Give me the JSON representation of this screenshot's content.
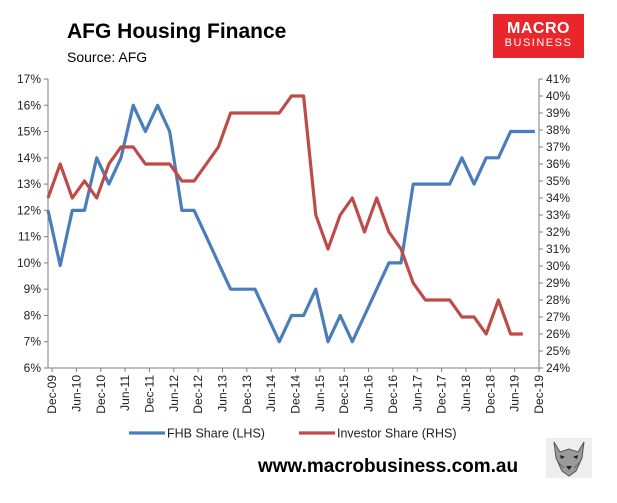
{
  "header": {
    "title": "AFG Housing Finance",
    "subtitle": "Source: AFG",
    "logo_line1": "MACRO",
    "logo_line2": "BUSINESS"
  },
  "footer": {
    "website": "www.macrobusiness.com.au"
  },
  "colors": {
    "fhb": "#4a7ebb",
    "investor": "#be4b48",
    "logo": "#e8262b",
    "grid": "#d9d9d9"
  },
  "chart_data": {
    "type": "line",
    "title": "AFG Housing Finance",
    "subtitle": "Source: AFG",
    "x_labels": [
      "Dec-09",
      "Jun-10",
      "Dec-10",
      "Jun-11",
      "Dec-11",
      "Jun-12",
      "Dec-12",
      "Jun-13",
      "Dec-13",
      "Jun-14",
      "Dec-14",
      "Jun-15",
      "Dec-15",
      "Jun-16",
      "Dec-16",
      "Jun-17",
      "Dec-17",
      "Jun-18",
      "Dec-18",
      "Jun-19",
      "Dec-19"
    ],
    "y_left": {
      "ticks": [
        "6%",
        "7%",
        "8%",
        "9%",
        "10%",
        "11%",
        "12%",
        "13%",
        "14%",
        "15%",
        "16%",
        "17%"
      ],
      "range": [
        6,
        17
      ]
    },
    "y_right": {
      "ticks": [
        "24%",
        "25%",
        "26%",
        "27%",
        "28%",
        "29%",
        "30%",
        "31%",
        "32%",
        "33%",
        "34%",
        "35%",
        "36%",
        "37%",
        "38%",
        "39%",
        "40%",
        "41%"
      ],
      "range": [
        24,
        41
      ]
    },
    "grid": false,
    "legend": "bottom",
    "series": [
      {
        "name": "FHB Share (LHS)",
        "axis": "left",
        "points": [
          [
            "Nov-09",
            12.0
          ],
          [
            "Feb-10",
            9.9
          ],
          [
            "May-10",
            12.0
          ],
          [
            "Aug-10",
            12.0
          ],
          [
            "Nov-10",
            14.0
          ],
          [
            "Feb-11",
            13.0
          ],
          [
            "May-11",
            14.0
          ],
          [
            "Aug-11",
            16.0
          ],
          [
            "Nov-11",
            15.0
          ],
          [
            "Feb-12",
            16.0
          ],
          [
            "May-12",
            15.0
          ],
          [
            "Aug-12",
            12.0
          ],
          [
            "Nov-12",
            12.0
          ],
          [
            "Feb-13",
            11.0
          ],
          [
            "May-13",
            10.0
          ],
          [
            "Aug-13",
            9.0
          ],
          [
            "Nov-13",
            9.0
          ],
          [
            "Feb-14",
            9.0
          ],
          [
            "May-14",
            8.0
          ],
          [
            "Aug-14",
            7.0
          ],
          [
            "Nov-14",
            8.0
          ],
          [
            "Feb-15",
            8.0
          ],
          [
            "May-15",
            9.0
          ],
          [
            "Aug-15",
            7.0
          ],
          [
            "Nov-15",
            8.0
          ],
          [
            "Feb-16",
            7.0
          ],
          [
            "May-16",
            8.0
          ],
          [
            "Aug-16",
            9.0
          ],
          [
            "Nov-16",
            10.0
          ],
          [
            "Feb-17",
            10.0
          ],
          [
            "May-17",
            13.0
          ],
          [
            "Aug-17",
            13.0
          ],
          [
            "Nov-17",
            13.0
          ],
          [
            "Feb-18",
            13.0
          ],
          [
            "May-18",
            14.0
          ],
          [
            "Aug-18",
            13.0
          ],
          [
            "Nov-18",
            14.0
          ],
          [
            "Feb-19",
            14.0
          ],
          [
            "May-19",
            15.0
          ],
          [
            "Aug-19",
            15.0
          ],
          [
            "Nov-19",
            15.0
          ]
        ]
      },
      {
        "name": "Investor Share (RHS)",
        "axis": "right",
        "points": [
          [
            "Nov-09",
            34.0
          ],
          [
            "Feb-10",
            36.0
          ],
          [
            "May-10",
            34.0
          ],
          [
            "Aug-10",
            35.0
          ],
          [
            "Nov-10",
            34.0
          ],
          [
            "Feb-11",
            36.0
          ],
          [
            "May-11",
            37.0
          ],
          [
            "Aug-11",
            37.0
          ],
          [
            "Nov-11",
            36.0
          ],
          [
            "Feb-12",
            36.0
          ],
          [
            "May-12",
            36.0
          ],
          [
            "Aug-12",
            35.0
          ],
          [
            "Nov-12",
            35.0
          ],
          [
            "Feb-13",
            36.0
          ],
          [
            "May-13",
            37.0
          ],
          [
            "Aug-13",
            39.0
          ],
          [
            "Nov-13",
            39.0
          ],
          [
            "Feb-14",
            39.0
          ],
          [
            "May-14",
            39.0
          ],
          [
            "Aug-14",
            39.0
          ],
          [
            "Nov-14",
            40.0
          ],
          [
            "Feb-15",
            40.0
          ],
          [
            "May-15",
            33.0
          ],
          [
            "Aug-15",
            31.0
          ],
          [
            "Nov-15",
            33.0
          ],
          [
            "Feb-16",
            34.0
          ],
          [
            "May-16",
            32.0
          ],
          [
            "Aug-16",
            34.0
          ],
          [
            "Nov-16",
            32.0
          ],
          [
            "Feb-17",
            31.0
          ],
          [
            "May-17",
            29.0
          ],
          [
            "Aug-17",
            28.0
          ],
          [
            "Nov-17",
            28.0
          ],
          [
            "Feb-18",
            28.0
          ],
          [
            "May-18",
            27.0
          ],
          [
            "Aug-18",
            27.0
          ],
          [
            "Nov-18",
            26.0
          ],
          [
            "Feb-19",
            28.0
          ],
          [
            "May-19",
            26.0
          ],
          [
            "Aug-19",
            26.0
          ]
        ]
      }
    ]
  }
}
